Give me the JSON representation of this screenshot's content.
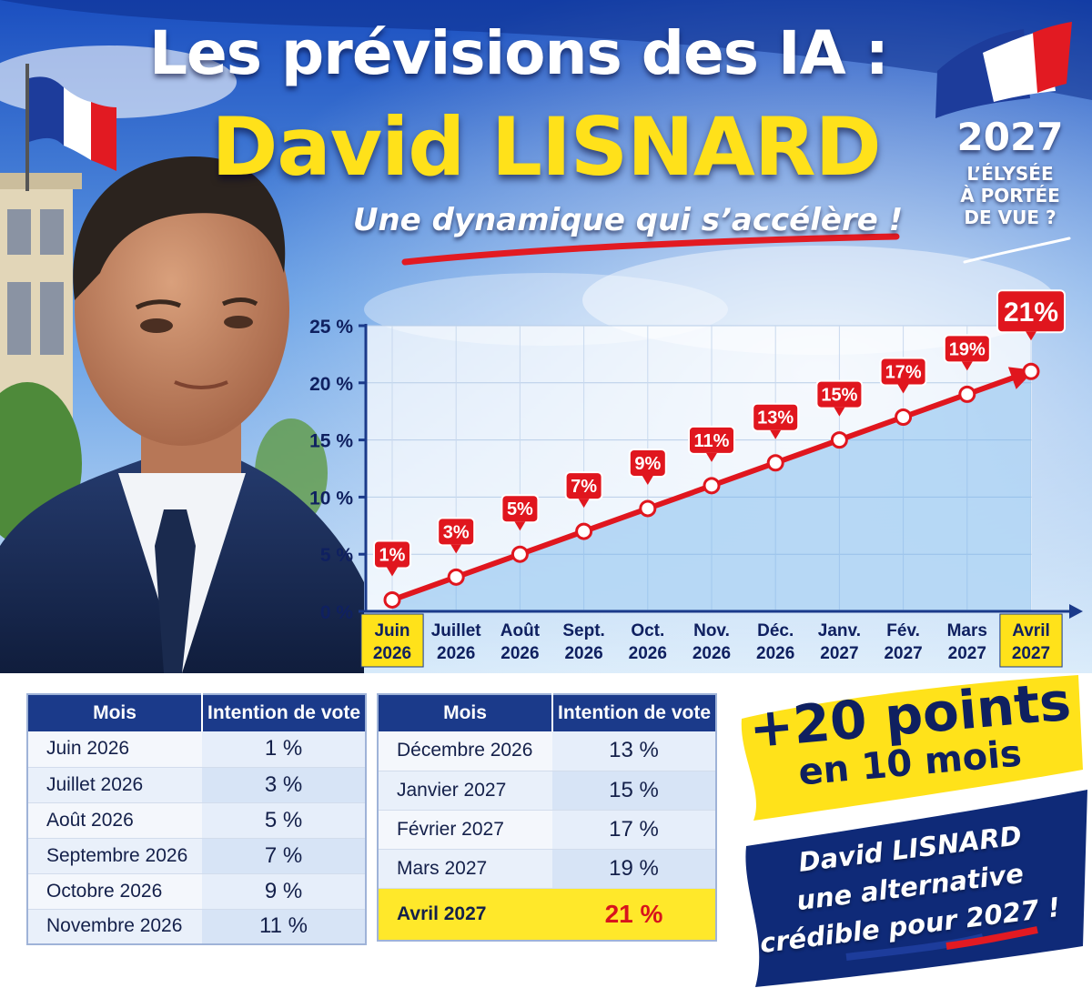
{
  "header": {
    "title_line1": "Les prévisions des IA :",
    "title_line2": "David LISNARD",
    "subtitle": "Une dynamique qui s’accélère !"
  },
  "badge": {
    "year": "2027",
    "line1": "L’ÉLYSÉE",
    "line2": "À PORTÉE",
    "line3": "DE VUE ?"
  },
  "chart_data": {
    "type": "line",
    "x": [
      [
        "Juin",
        "2026"
      ],
      [
        "Juillet",
        "2026"
      ],
      [
        "Août",
        "2026"
      ],
      [
        "Sept.",
        "2026"
      ],
      [
        "Oct.",
        "2026"
      ],
      [
        "Nov.",
        "2026"
      ],
      [
        "Déc.",
        "2026"
      ],
      [
        "Janv.",
        "2027"
      ],
      [
        "Fév.",
        "2027"
      ],
      [
        "Mars",
        "2027"
      ],
      [
        "Avril",
        "2027"
      ]
    ],
    "values": [
      1,
      3,
      5,
      7,
      9,
      11,
      13,
      15,
      17,
      19,
      21
    ],
    "point_labels": [
      "1%",
      "3%",
      "5%",
      "7%",
      "9%",
      "11%",
      "13%",
      "15%",
      "17%",
      "19%",
      "21%"
    ],
    "y_ticks": [
      "0 %",
      "5 %",
      "10 %",
      "15 %",
      "20 %",
      "25 %"
    ],
    "ylim": [
      0,
      25
    ],
    "highlight_x": [
      0,
      10
    ],
    "grid": true
  },
  "tables": {
    "header_month": "Mois",
    "header_vote": "Intention de vote",
    "left": [
      {
        "month": "Juin 2026",
        "vote": "1 %"
      },
      {
        "month": "Juillet 2026",
        "vote": "3 %"
      },
      {
        "month": "Août 2026",
        "vote": "5 %"
      },
      {
        "month": "Septembre 2026",
        "vote": "7 %"
      },
      {
        "month": "Octobre 2026",
        "vote": "9 %"
      },
      {
        "month": "Novembre 2026",
        "vote": "11 %"
      }
    ],
    "right": [
      {
        "month": "Décembre 2026",
        "vote": "13 %"
      },
      {
        "month": "Janvier 2027",
        "vote": "15 %"
      },
      {
        "month": "Février 2027",
        "vote": "17 %"
      },
      {
        "month": "Mars 2027",
        "vote": "19 %"
      },
      {
        "month": "Avril 2027",
        "vote": "21 %"
      }
    ]
  },
  "callouts": {
    "points_line1": "+20 points",
    "points_line2": "en 10 mois",
    "alt_line1": "David LISNARD",
    "alt_line2": "une alternative",
    "alt_line3": "crédible pour 2027 !"
  },
  "colors": {
    "navy": "#0f2a78",
    "red": "#e0161e",
    "yellow": "#ffe21a",
    "sky": "#8fc0ee"
  }
}
